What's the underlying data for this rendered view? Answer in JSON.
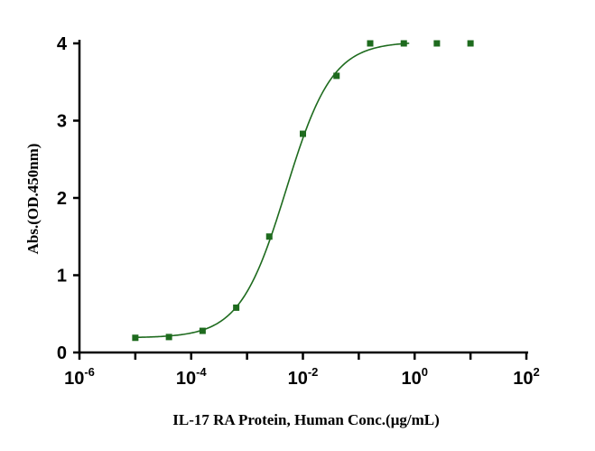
{
  "chart_data": {
    "type": "scatter",
    "title": "",
    "xlabel": "IL-17 RA Protein, Human Conc.(μg/mL)",
    "ylabel": "Abs.(OD.450nm)",
    "x_scale": "log",
    "xlim": [
      1e-06,
      100
    ],
    "ylim": [
      0,
      4
    ],
    "x_ticks": [
      {
        "base": "10",
        "exp": "-6"
      },
      {
        "base": "10",
        "exp": "-4"
      },
      {
        "base": "10",
        "exp": "-2"
      },
      {
        "base": "10",
        "exp": "0"
      },
      {
        "base": "10",
        "exp": "2"
      }
    ],
    "y_ticks": [
      "0",
      "1",
      "2",
      "3",
      "4"
    ],
    "grid": false,
    "legend": "none",
    "color": "#1e6b1e",
    "series": [
      {
        "x": [
          1e-05,
          4e-05,
          0.00016,
          0.00064,
          0.0025,
          0.01,
          0.04,
          0.16,
          0.64,
          2.5,
          10
        ],
        "y": [
          0.19,
          0.2,
          0.28,
          0.58,
          1.5,
          2.83,
          3.58,
          4.0,
          4.0,
          4.0,
          4.0
        ]
      }
    ],
    "fit_curve": {
      "model": "4PL",
      "bottom": 0.19,
      "top": 4.02,
      "ec50": 0.005,
      "hill": 1.05
    }
  }
}
